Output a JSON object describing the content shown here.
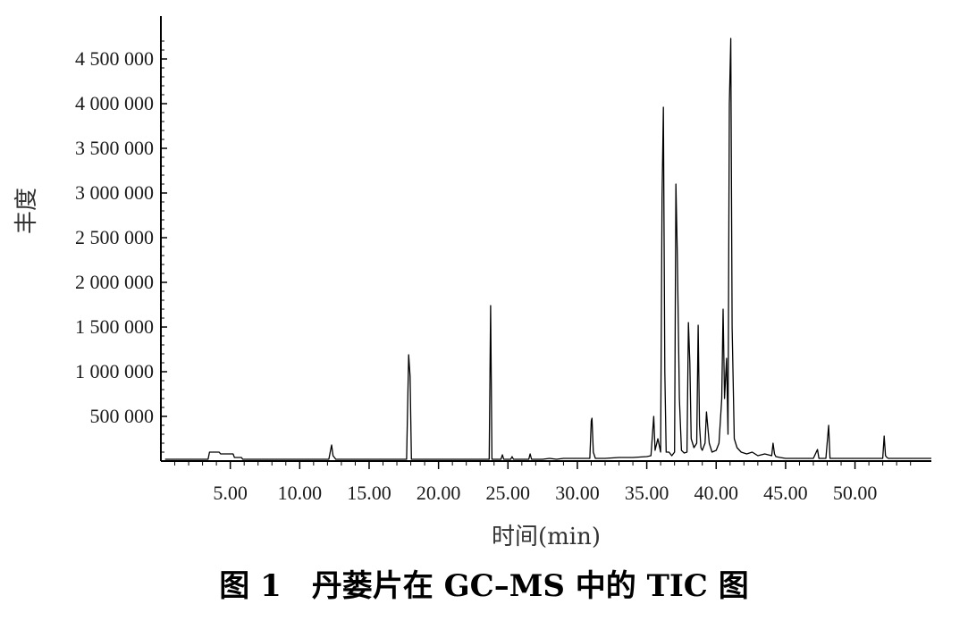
{
  "caption": "图 1　丹蒌片在 GC–MS 中的 TIC 图",
  "chart_data": {
    "type": "line",
    "title": "",
    "xlabel": "时间(min)",
    "ylabel": "丰度",
    "xlim": [
      0,
      55.5
    ],
    "ylim": [
      0,
      4800000
    ],
    "x_ticks": [
      5,
      10,
      15,
      20,
      25,
      30,
      35,
      40,
      45,
      50
    ],
    "x_tick_labels": [
      "5.00",
      "10.00",
      "15.00",
      "20.00",
      "25.00",
      "30.00",
      "35.00",
      "40.00",
      "45.00",
      "50.00"
    ],
    "y_ticks": [
      500000,
      1000000,
      1500000,
      2000000,
      2500000,
      3000000,
      3500000,
      4000000,
      4500000
    ],
    "y_tick_labels": [
      "500 000",
      "1 000 000",
      "1 500 000",
      "2 000 000",
      "2 500 000",
      "3 000 000",
      "3 500 000",
      "4 000 000",
      "4 500 000"
    ],
    "series": [
      {
        "x": [
          0.3,
          3.4,
          3.5,
          4.2,
          4.3,
          5.2,
          5.3,
          5.8,
          5.9,
          12.1,
          12.3,
          12.4,
          12.6,
          17.7,
          17.85,
          17.95,
          18.05,
          23.65,
          23.75,
          23.85,
          24.5,
          24.6,
          24.7,
          25.2,
          25.3,
          25.4,
          26.5,
          26.6,
          26.7,
          27.5,
          28,
          28.5,
          29,
          30,
          30.9,
          31,
          31.05,
          31.15,
          31.3,
          32,
          33,
          34,
          35,
          35.3,
          35.5,
          35.6,
          35.8,
          36,
          36.1,
          36.2,
          36.3,
          36.4,
          36.6,
          36.8,
          37,
          37.1,
          37.2,
          37.35,
          37.5,
          37.7,
          37.9,
          38,
          38.1,
          38.2,
          38.4,
          38.6,
          38.7,
          38.8,
          38.9,
          39,
          39.2,
          39.3,
          39.5,
          39.7,
          40,
          40.2,
          40.4,
          40.5,
          40.6,
          40.75,
          40.85,
          40.95,
          41.05,
          41.15,
          41.3,
          41.5,
          41.8,
          42.2,
          42.6,
          43,
          43.5,
          44,
          44.1,
          44.2,
          44.3,
          44.6,
          45,
          46,
          47,
          47.3,
          47.4,
          47.6,
          47.9,
          48.1,
          48.2,
          48.3,
          49,
          50,
          51,
          52,
          52.1,
          52.2,
          52.3,
          52.4,
          53,
          54,
          55.5
        ],
        "y": [
          0,
          0,
          100000,
          100000,
          80000,
          80000,
          40000,
          40000,
          0,
          0,
          180000,
          60000,
          0,
          0,
          1190000,
          950000,
          0,
          0,
          1740000,
          0,
          0,
          70000,
          0,
          0,
          50000,
          0,
          0,
          80000,
          0,
          0,
          30000,
          0,
          30000,
          30000,
          30000,
          450000,
          480000,
          100000,
          30000,
          30000,
          40000,
          40000,
          50000,
          60000,
          500000,
          120000,
          250000,
          100000,
          2950000,
          3960000,
          1000000,
          100000,
          100000,
          60000,
          100000,
          3100000,
          2300000,
          700000,
          120000,
          90000,
          100000,
          1550000,
          1100000,
          250000,
          150000,
          200000,
          1520000,
          400000,
          150000,
          120000,
          200000,
          550000,
          200000,
          100000,
          120000,
          200000,
          700000,
          1700000,
          700000,
          1150000,
          300000,
          4000000,
          4730000,
          1500000,
          250000,
          150000,
          100000,
          80000,
          100000,
          60000,
          80000,
          60000,
          200000,
          80000,
          50000,
          40000,
          30000,
          30000,
          30000,
          130000,
          30000,
          30000,
          30000,
          400000,
          30000,
          30000,
          30000,
          30000,
          30000,
          30000,
          280000,
          60000,
          40000,
          30000,
          30000,
          30000,
          30000
        ]
      }
    ]
  }
}
